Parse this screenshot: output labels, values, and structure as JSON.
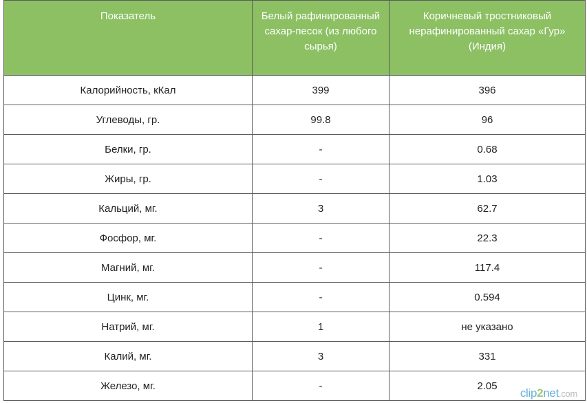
{
  "table": {
    "headers": [
      "Показатель",
      "Белый рафинированный сахар-песок (из любого сырья)",
      "Коричневый тростниковый нерафинированный сахар «Гур» (Индия)"
    ],
    "rows": [
      [
        "Калорийность, кКал",
        "399",
        "396"
      ],
      [
        "Углеводы, гр.",
        "99.8",
        "96"
      ],
      [
        "Белки, гр.",
        "-",
        "0.68"
      ],
      [
        "Жиры, гр.",
        "-",
        "1.03"
      ],
      [
        "Кальций, мг.",
        "3",
        "62.7"
      ],
      [
        "Фосфор, мг.",
        "-",
        "22.3"
      ],
      [
        "Магний, мг.",
        "-",
        "117.4"
      ],
      [
        "Цинк, мг.",
        "-",
        "0.594"
      ],
      [
        "Натрий, мг.",
        "1",
        "не указано"
      ],
      [
        "Калий, мг.",
        "3",
        "331"
      ],
      [
        "Железо, мг.",
        "-",
        "2.05"
      ]
    ]
  },
  "watermark": {
    "prefix": "clip",
    "digit": "2",
    "suffix": "net",
    "dotcom": ".com"
  },
  "colors": {
    "header_bg": "#8cc063",
    "header_text": "#ffffff",
    "border": "#5a5a5a"
  }
}
